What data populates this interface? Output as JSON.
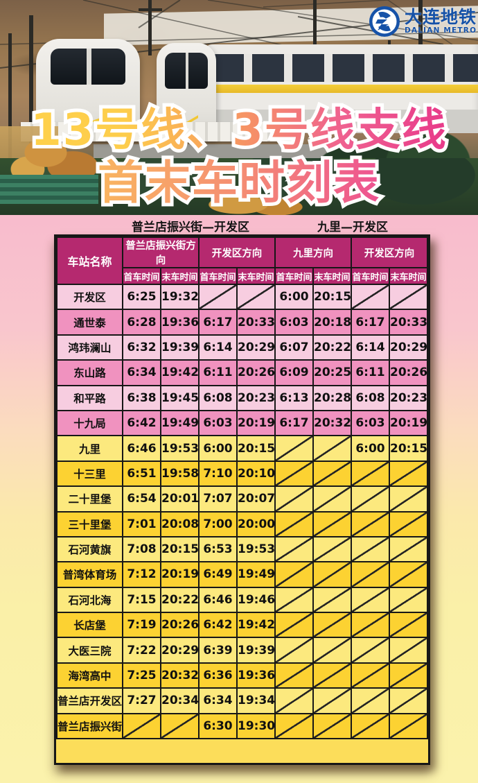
{
  "brand": {
    "logo_cn": "大连地铁",
    "logo_en": "DALIAN METRO"
  },
  "title": {
    "line1": "13号线、3号线支线",
    "line2": "首末车时刻表"
  },
  "route_sections": {
    "left": "普兰店振兴街—开发区",
    "right": "九里—开发区"
  },
  "timetable": {
    "corner_header": "车站名称",
    "direction_headers": [
      "普兰店振兴街方向",
      "开发区方向",
      "九里方向",
      "开发区方向"
    ],
    "sub_headers": [
      "首车时间",
      "末车时间",
      "首车时间",
      "末车时间",
      "首车时间",
      "末车时间",
      "首车时间",
      "末车时间"
    ],
    "rows": [
      {
        "station": "开发区",
        "zone": "pink",
        "times": [
          "6:25",
          "19:32",
          null,
          null,
          "6:00",
          "20:15",
          null,
          null
        ]
      },
      {
        "station": "通世泰",
        "zone": "pink",
        "times": [
          "6:28",
          "19:36",
          "6:17",
          "20:33",
          "6:03",
          "20:18",
          "6:17",
          "20:33"
        ]
      },
      {
        "station": "鸿玮澜山",
        "zone": "pink",
        "times": [
          "6:32",
          "19:39",
          "6:14",
          "20:29",
          "6:07",
          "20:22",
          "6:14",
          "20:29"
        ]
      },
      {
        "station": "东山路",
        "zone": "pink",
        "times": [
          "6:34",
          "19:42",
          "6:11",
          "20:26",
          "6:09",
          "20:25",
          "6:11",
          "20:26"
        ]
      },
      {
        "station": "和平路",
        "zone": "pink",
        "times": [
          "6:38",
          "19:45",
          "6:08",
          "20:23",
          "6:13",
          "20:28",
          "6:08",
          "20:23"
        ]
      },
      {
        "station": "十九局",
        "zone": "pink",
        "times": [
          "6:42",
          "19:49",
          "6:03",
          "20:19",
          "6:17",
          "20:32",
          "6:03",
          "20:19"
        ]
      },
      {
        "station": "九里",
        "zone": "yellow",
        "times": [
          "6:46",
          "19:53",
          "6:00",
          "20:15",
          null,
          null,
          "6:00",
          "20:15"
        ]
      },
      {
        "station": "十三里",
        "zone": "yellow",
        "times": [
          "6:51",
          "19:58",
          "7:10",
          "20:10",
          null,
          null,
          null,
          null
        ]
      },
      {
        "station": "二十里堡",
        "zone": "yellow",
        "times": [
          "6:54",
          "20:01",
          "7:07",
          "20:07",
          null,
          null,
          null,
          null
        ]
      },
      {
        "station": "三十里堡",
        "zone": "yellow",
        "times": [
          "7:01",
          "20:08",
          "7:00",
          "20:00",
          null,
          null,
          null,
          null
        ]
      },
      {
        "station": "石河黄旗",
        "zone": "yellow",
        "times": [
          "7:08",
          "20:15",
          "6:53",
          "19:53",
          null,
          null,
          null,
          null
        ]
      },
      {
        "station": "普湾体育场",
        "zone": "yellow",
        "times": [
          "7:12",
          "20:19",
          "6:49",
          "19:49",
          null,
          null,
          null,
          null
        ]
      },
      {
        "station": "石河北海",
        "zone": "yellow",
        "times": [
          "7:15",
          "20:22",
          "6:46",
          "19:46",
          null,
          null,
          null,
          null
        ]
      },
      {
        "station": "长店堡",
        "zone": "yellow",
        "times": [
          "7:19",
          "20:26",
          "6:42",
          "19:42",
          null,
          null,
          null,
          null
        ]
      },
      {
        "station": "大医三院",
        "zone": "yellow",
        "times": [
          "7:22",
          "20:29",
          "6:39",
          "19:39",
          null,
          null,
          null,
          null
        ]
      },
      {
        "station": "海湾高中",
        "zone": "yellow",
        "times": [
          "7:25",
          "20:32",
          "6:36",
          "19:36",
          null,
          null,
          null,
          null
        ]
      },
      {
        "station": "普兰店开发区",
        "zone": "yellow",
        "times": [
          "7:27",
          "20:34",
          "6:34",
          "19:34",
          null,
          null,
          null,
          null
        ]
      },
      {
        "station": "普兰店振兴街",
        "zone": "yellow",
        "times": [
          null,
          null,
          "6:30",
          "19:30",
          null,
          null,
          null,
          null
        ]
      }
    ]
  },
  "colors": {
    "header_bg": "#b5296f",
    "pink_row_light": "#f7cde0",
    "pink_row_dark": "#f092bf",
    "yellow_row_light": "#fce97e",
    "yellow_row_dark": "#fcd232",
    "table_footer": "#fcdd5a",
    "logo_blue": "#1652a8",
    "title_gradient_start": "#ffd24a",
    "title_gradient_mid": "#f79b5e",
    "title_gradient_end": "#e62e88",
    "page_bg_top": "#f6aecb",
    "page_bg_bottom": "#faf0a8"
  }
}
